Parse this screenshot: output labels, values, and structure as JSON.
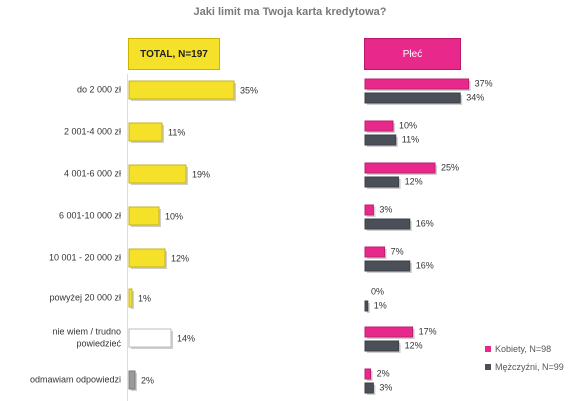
{
  "title": "Jaki limit ma Twoja karta kredytowa?",
  "total_header": "TOTAL, N=197",
  "plec_header": "Płeć",
  "legend": {
    "kobiety": "Kobiety, N=98",
    "mezczyzni": "Mężczyźni, N=99"
  },
  "colors": {
    "total": "#f5e02a",
    "total_gray": "#9a9a9a",
    "total_white": "#ffffff",
    "kobiety": "#e8288a",
    "mezczyzni": "#4a4f58"
  },
  "chart_data": [
    {
      "type": "bar",
      "title": "Jaki limit ma Twoja karta kredytowa?",
      "categories": [
        "do 2 000 zł",
        "2 001-4 000 zł",
        "4 001-6 000 zł",
        "6 001-10 000 zł",
        "10 001 - 20 000 zł",
        "powyżej 20 000 zł",
        "nie wiem / trudno powiedzieć",
        "odmawiam odpowiedzi"
      ],
      "series": [
        {
          "name": "TOTAL, N=197",
          "values": [
            35,
            11,
            19,
            10,
            12,
            1,
            14,
            2
          ],
          "labels": [
            "35%",
            "11%",
            "19%",
            "10%",
            "12%",
            "1%",
            "14%",
            "2%"
          ]
        }
      ]
    },
    {
      "type": "bar",
      "title": "Płeć",
      "categories": [
        "do 2 000 zł",
        "2 001-4 000 zł",
        "4 001-6 000 zł",
        "6 001-10 000 zł",
        "10 001 - 20 000 zł",
        "powyżej 20 000 zł",
        "nie wiem / trudno powiedzieć",
        "odmawiam odpowiedzi"
      ],
      "series": [
        {
          "name": "Kobiety, N=98",
          "values": [
            37,
            10,
            25,
            3,
            7,
            0,
            17,
            2
          ],
          "labels": [
            "37%",
            "10%",
            "25%",
            "3%",
            "7%",
            "0%",
            "17%",
            "2%"
          ]
        },
        {
          "name": "Mężczyźni, N=99",
          "values": [
            34,
            11,
            12,
            16,
            16,
            1,
            12,
            3
          ],
          "labels": [
            "34%",
            "11%",
            "12%",
            "16%",
            "16%",
            "1%",
            "12%",
            "3%"
          ]
        }
      ]
    }
  ]
}
